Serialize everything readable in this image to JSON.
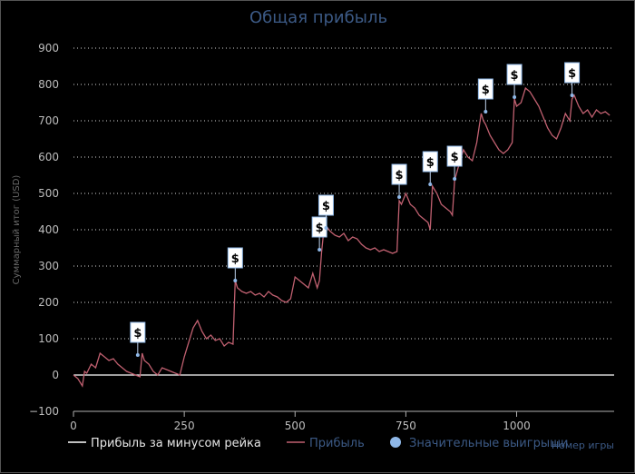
{
  "chart_data": {
    "type": "line",
    "title": "Общая прибыль",
    "xlabel": "Номер игры",
    "ylabel": "Суммарный итог (USD)",
    "xlim": [
      0,
      1220
    ],
    "ylim": [
      -100,
      900
    ],
    "x_ticks": [
      "0",
      "250",
      "500",
      "750",
      "1000"
    ],
    "y_ticks": [
      "−100",
      "0",
      "100",
      "200",
      "300",
      "400",
      "500",
      "600",
      "700",
      "800",
      "900"
    ],
    "grid": "horizontal dotted",
    "legend": "bottom-left",
    "colors": {
      "background": "#000000",
      "title": "#3c5a86",
      "net_line": "#ffffff",
      "profit_line": "#c06070",
      "markers": "#8fb8e8",
      "legend_text_light": "#e6e6e6",
      "legend_text_blue": "#3c5a86"
    },
    "series": [
      {
        "name": "Прибыль за минусом рейка",
        "x": [
          0,
          1220
        ],
        "y": [
          0,
          0
        ]
      },
      {
        "name": "Прибыль",
        "x": [
          0,
          10,
          20,
          25,
          30,
          40,
          50,
          60,
          65,
          70,
          80,
          90,
          100,
          110,
          120,
          130,
          140,
          150,
          155,
          160,
          170,
          180,
          190,
          200,
          210,
          220,
          230,
          240,
          250,
          260,
          270,
          280,
          290,
          300,
          310,
          320,
          330,
          340,
          350,
          360,
          365,
          370,
          380,
          390,
          400,
          410,
          420,
          430,
          440,
          450,
          460,
          470,
          480,
          490,
          500,
          510,
          520,
          530,
          540,
          550,
          555,
          560,
          565,
          570,
          580,
          590,
          600,
          610,
          620,
          630,
          640,
          650,
          660,
          670,
          680,
          690,
          700,
          710,
          720,
          730,
          735,
          740,
          750,
          760,
          770,
          780,
          790,
          800,
          805,
          810,
          820,
          830,
          840,
          850,
          855,
          860,
          870,
          880,
          890,
          900,
          910,
          920,
          925,
          930,
          940,
          950,
          960,
          970,
          980,
          990,
          995,
          1000,
          1010,
          1020,
          1030,
          1040,
          1050,
          1060,
          1070,
          1080,
          1090,
          1100,
          1110,
          1120,
          1125,
          1130,
          1140,
          1150,
          1160,
          1170,
          1180,
          1190,
          1200,
          1210
        ],
        "y": [
          0,
          -10,
          -30,
          10,
          5,
          30,
          20,
          60,
          55,
          50,
          40,
          45,
          30,
          20,
          10,
          5,
          0,
          -5,
          60,
          40,
          30,
          10,
          0,
          20,
          15,
          10,
          5,
          0,
          50,
          90,
          130,
          150,
          120,
          100,
          110,
          95,
          100,
          80,
          90,
          85,
          260,
          240,
          230,
          225,
          230,
          220,
          225,
          215,
          230,
          220,
          215,
          205,
          200,
          210,
          270,
          260,
          250,
          240,
          280,
          240,
          260,
          340,
          400,
          410,
          395,
          385,
          380,
          390,
          370,
          380,
          375,
          360,
          350,
          345,
          350,
          340,
          345,
          340,
          335,
          340,
          480,
          470,
          500,
          470,
          460,
          440,
          430,
          420,
          400,
          520,
          500,
          470,
          460,
          450,
          440,
          535,
          580,
          620,
          600,
          590,
          640,
          720,
          700,
          690,
          660,
          640,
          620,
          610,
          620,
          640,
          760,
          740,
          750,
          790,
          780,
          760,
          740,
          710,
          680,
          660,
          650,
          680,
          720,
          700,
          760,
          770,
          740,
          720,
          730,
          710,
          730,
          720,
          725,
          715
        ]
      },
      {
        "name": "Значительные выигрыши",
        "marker_label": "$",
        "x": [
          145,
          365,
          555,
          570,
          735,
          805,
          860,
          930,
          995,
          1125
        ],
        "y": [
          55,
          260,
          345,
          405,
          490,
          525,
          540,
          725,
          765,
          770
        ]
      }
    ]
  }
}
